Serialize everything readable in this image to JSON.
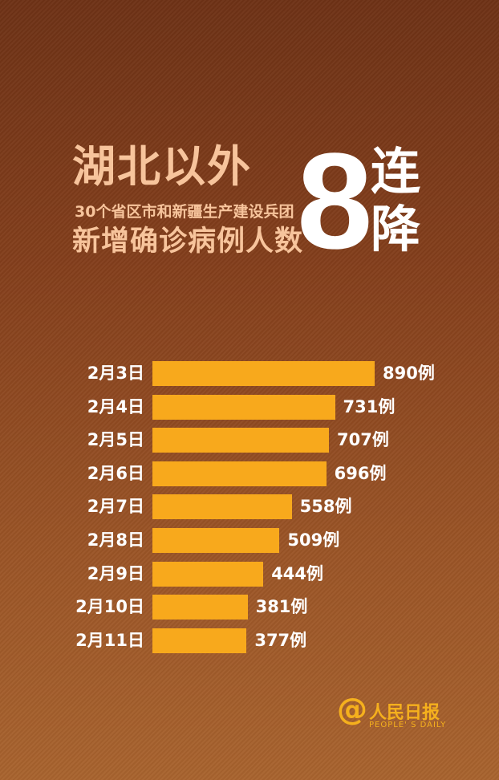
{
  "title": {
    "line1": "湖北以外",
    "line2": "30个省区市和新疆生产建设兵团",
    "line3": "新增确诊病例人数",
    "big_number": "8",
    "suffix": "连降"
  },
  "chart_data": {
    "type": "bar",
    "orientation": "horizontal",
    "categories": [
      "2月3日",
      "2月4日",
      "2月5日",
      "2月6日",
      "2月7日",
      "2月8日",
      "2月9日",
      "2月10日",
      "2月11日"
    ],
    "values": [
      890,
      731,
      707,
      696,
      558,
      509,
      444,
      381,
      377
    ],
    "value_labels": [
      "890例",
      "731例",
      "707例",
      "696例",
      "558例",
      "509例",
      "444例",
      "381例",
      "377例"
    ],
    "bar_color": "#f8a91c",
    "grid": false
  },
  "logo": {
    "symbol": "@",
    "name_cn": "人民日报",
    "name_en": "PEOPLE' S DAILY"
  }
}
